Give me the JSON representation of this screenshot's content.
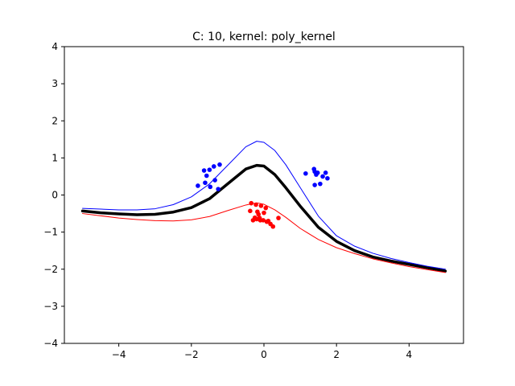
{
  "chart_data": {
    "type": "scatter",
    "title": "C: 10, kernel: poly_kernel",
    "xlabel": "",
    "ylabel": "",
    "xlim": [
      -5.5,
      5.5
    ],
    "ylim": [
      -4,
      4
    ],
    "xticks": [
      -4,
      -2,
      0,
      2,
      4
    ],
    "yticks": [
      -4,
      -3,
      -2,
      -1,
      0,
      1,
      2,
      3,
      4
    ],
    "grid": false,
    "series": [
      {
        "kind": "points",
        "color": "#0000ff",
        "x": [
          -1.82,
          -1.65,
          -1.58,
          -1.62,
          -1.5,
          -1.38,
          -1.22,
          -1.48,
          -1.35,
          -1.26,
          1.15,
          1.38,
          1.4,
          1.44,
          1.48,
          1.62,
          1.7,
          1.75,
          1.4,
          1.55
        ],
        "y": [
          0.25,
          0.66,
          0.52,
          0.33,
          0.68,
          0.77,
          0.82,
          0.22,
          0.4,
          0.16,
          0.58,
          0.7,
          0.63,
          0.55,
          0.6,
          0.5,
          0.6,
          0.45,
          0.27,
          0.3
        ]
      },
      {
        "kind": "points",
        "color": "#ff0000",
        "x": [
          -0.35,
          -0.22,
          -0.38,
          -0.3,
          -0.18,
          -0.12,
          -0.08,
          0.0,
          0.05,
          0.12,
          0.18,
          0.25,
          -0.2,
          -0.1,
          0.08,
          0.4,
          -0.15,
          -0.02,
          -0.25
        ],
        "y": [
          -0.22,
          -0.26,
          -0.43,
          -0.68,
          -0.45,
          -0.62,
          -0.29,
          -0.48,
          -0.35,
          -0.7,
          -0.78,
          -0.85,
          -0.65,
          -0.68,
          -0.72,
          -0.62,
          -0.52,
          -0.68,
          -0.61
        ]
      },
      {
        "kind": "line",
        "color": "#000000",
        "width": "thick",
        "x": [
          -5,
          -4.5,
          -4,
          -3.5,
          -3,
          -2.5,
          -2,
          -1.5,
          -1,
          -0.5,
          -0.2,
          0,
          0.3,
          0.6,
          1,
          1.5,
          2,
          2.5,
          3,
          3.5,
          4,
          4.5,
          5
        ],
        "y": [
          -0.43,
          -0.48,
          -0.51,
          -0.53,
          -0.52,
          -0.46,
          -0.34,
          -0.1,
          0.3,
          0.7,
          0.8,
          0.78,
          0.55,
          0.2,
          -0.3,
          -0.87,
          -1.25,
          -1.5,
          -1.67,
          -1.78,
          -1.87,
          -1.96,
          -2.05
        ]
      },
      {
        "kind": "line",
        "color": "#0000ff",
        "width": "thin",
        "x": [
          -5,
          -4.5,
          -4,
          -3.5,
          -3,
          -2.5,
          -2,
          -1.5,
          -1,
          -0.5,
          -0.2,
          0,
          0.3,
          0.6,
          1,
          1.5,
          2,
          2.5,
          3,
          3.5,
          4,
          4.5,
          5
        ],
        "y": [
          -0.36,
          -0.38,
          -0.4,
          -0.4,
          -0.37,
          -0.26,
          -0.05,
          0.3,
          0.8,
          1.3,
          1.45,
          1.42,
          1.2,
          0.82,
          0.2,
          -0.57,
          -1.1,
          -1.38,
          -1.57,
          -1.71,
          -1.82,
          -1.92,
          -2.0
        ]
      },
      {
        "kind": "line",
        "color": "#ff0000",
        "width": "thin",
        "x": [
          -5,
          -4.5,
          -4,
          -3.5,
          -3,
          -2.5,
          -2,
          -1.5,
          -1,
          -0.5,
          -0.2,
          0,
          0.3,
          0.6,
          1,
          1.5,
          2,
          2.5,
          3,
          3.5,
          4,
          4.5,
          5
        ],
        "y": [
          -0.5,
          -0.56,
          -0.62,
          -0.66,
          -0.69,
          -0.7,
          -0.67,
          -0.58,
          -0.42,
          -0.27,
          -0.21,
          -0.25,
          -0.4,
          -0.6,
          -0.9,
          -1.2,
          -1.42,
          -1.58,
          -1.72,
          -1.83,
          -1.93,
          -2.01,
          -2.09
        ]
      }
    ]
  }
}
